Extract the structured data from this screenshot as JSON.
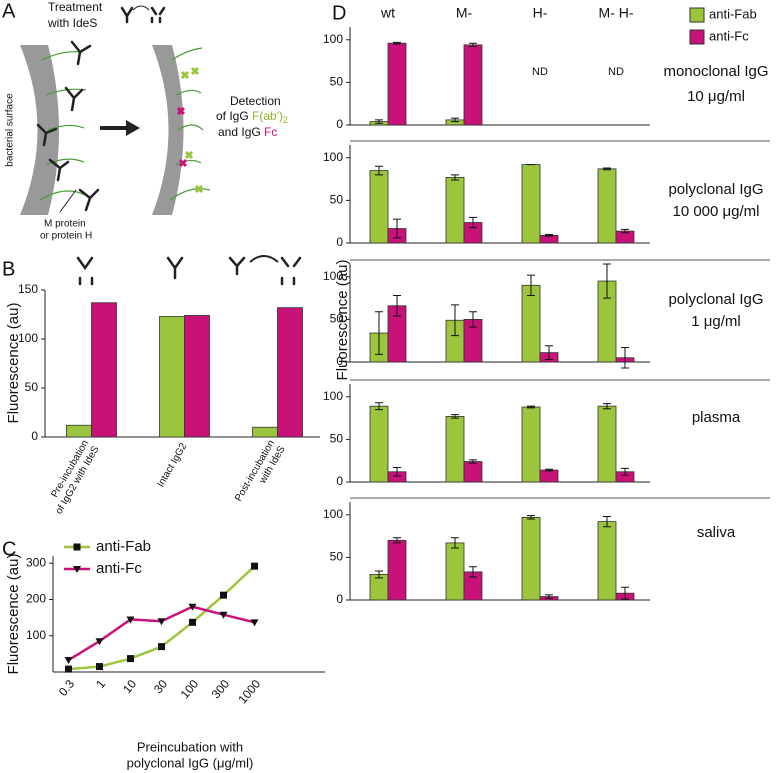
{
  "panel_labels": [
    "A",
    "B",
    "C",
    "D"
  ],
  "diagram": {
    "treatment": [
      "Treatment",
      "with IdeS"
    ],
    "surface": "bacterial surface",
    "protein": [
      "M protein",
      "or protein H"
    ],
    "detection": {
      "line1": "Detection",
      "line2": "of IgG ",
      "fab": "F(ab')",
      "fab_sub": "2",
      "line3": "and IgG ",
      "fc": "Fc"
    }
  },
  "chart_data": [
    {
      "type": "bar",
      "ylabel": "Fluorescence (au)",
      "categories": [
        [
          "Pre-incubation",
          "of IgG2 with IdeS"
        ],
        [
          "Intact IgG2"
        ],
        [
          "Post-incubation",
          "with IdeS"
        ]
      ],
      "series": [
        {
          "color": "#9bc53d",
          "values": [
            12,
            123,
            10
          ]
        },
        {
          "color": "#c8127a",
          "values": [
            137,
            124,
            132
          ]
        }
      ],
      "ylim": [
        0,
        150
      ],
      "yticks": [
        0,
        50,
        100,
        150
      ]
    },
    {
      "type": "line",
      "ylabel": "Fluorescence (au)",
      "xlabel": [
        "Preincubation with",
        "polyclonal IgG (μg/ml)"
      ],
      "categories": [
        "0.3",
        "1",
        "10",
        "30",
        "100",
        "300",
        "1000"
      ],
      "legend": "top-left",
      "series": [
        {
          "name": "anti-Fab",
          "color": "#9bc53d",
          "marker": "square",
          "values": [
            8,
            15,
            37,
            70,
            137,
            212,
            292
          ]
        },
        {
          "name": "anti-Fc",
          "color": "#c8127a",
          "marker": "triangle-down",
          "values": [
            33,
            85,
            145,
            140,
            180,
            158,
            137
          ]
        }
      ],
      "ylim": [
        0,
        320
      ],
      "yticks": [
        100,
        200,
        300
      ]
    },
    {
      "type": "bar",
      "ylabel": "Fluorescence (au)",
      "categories": [
        "wt",
        "M-",
        "H-",
        "M- H-"
      ],
      "legend": "top-right",
      "annotation": [
        "monoclonal IgG",
        "10 μg/ml"
      ],
      "na_labels": [
        null,
        null,
        "ND",
        "ND"
      ],
      "series": [
        {
          "name": "anti-Fab",
          "color": "#9bc53d",
          "values": [
            4,
            6,
            null,
            null
          ],
          "errors": [
            2,
            2,
            null,
            null
          ]
        },
        {
          "name": "anti-Fc",
          "color": "#c8127a",
          "values": [
            96,
            94,
            null,
            null
          ],
          "errors": [
            1,
            2,
            null,
            null
          ]
        }
      ],
      "ylim": [
        0,
        115
      ],
      "yticks": [
        0,
        50,
        100
      ]
    },
    {
      "type": "bar",
      "annotation": [
        "polyclonal IgG",
        "10 000 μg/ml"
      ],
      "series": [
        {
          "color": "#9bc53d",
          "values": [
            85,
            77,
            92,
            87
          ],
          "errors": [
            5,
            3,
            0,
            1
          ]
        },
        {
          "color": "#c8127a",
          "values": [
            17,
            24,
            9,
            14
          ],
          "errors": [
            11,
            6,
            1,
            2
          ]
        }
      ],
      "ylim": [
        0,
        115
      ],
      "yticks": [
        0,
        50,
        100
      ]
    },
    {
      "type": "bar",
      "annotation": [
        "polyclonal IgG",
        "1 μg/ml"
      ],
      "series": [
        {
          "color": "#9bc53d",
          "values": [
            34,
            49,
            90,
            95
          ],
          "errors": [
            25,
            18,
            12,
            20
          ]
        },
        {
          "color": "#c8127a",
          "values": [
            66,
            50,
            11,
            5
          ],
          "errors": [
            12,
            9,
            8,
            12
          ]
        }
      ],
      "ylim": [
        0,
        115
      ],
      "yticks": [
        0,
        50,
        100
      ]
    },
    {
      "type": "bar",
      "annotation": [
        "plasma"
      ],
      "series": [
        {
          "color": "#9bc53d",
          "values": [
            89,
            77,
            88,
            89
          ],
          "errors": [
            4,
            2,
            1,
            3
          ]
        },
        {
          "color": "#c8127a",
          "values": [
            12,
            24,
            14,
            12
          ],
          "errors": [
            5,
            2,
            1,
            4
          ]
        }
      ],
      "ylim": [
        0,
        115
      ],
      "yticks": [
        0,
        50,
        100
      ]
    },
    {
      "type": "bar",
      "annotation": [
        "saliva"
      ],
      "series": [
        {
          "color": "#9bc53d",
          "values": [
            30,
            67,
            97,
            92
          ],
          "errors": [
            4,
            6,
            2,
            6
          ]
        },
        {
          "color": "#c8127a",
          "values": [
            70,
            33,
            4,
            8
          ],
          "errors": [
            3,
            6,
            2,
            7
          ]
        }
      ],
      "ylim": [
        0,
        115
      ],
      "yticks": [
        0,
        50,
        100
      ]
    }
  ]
}
